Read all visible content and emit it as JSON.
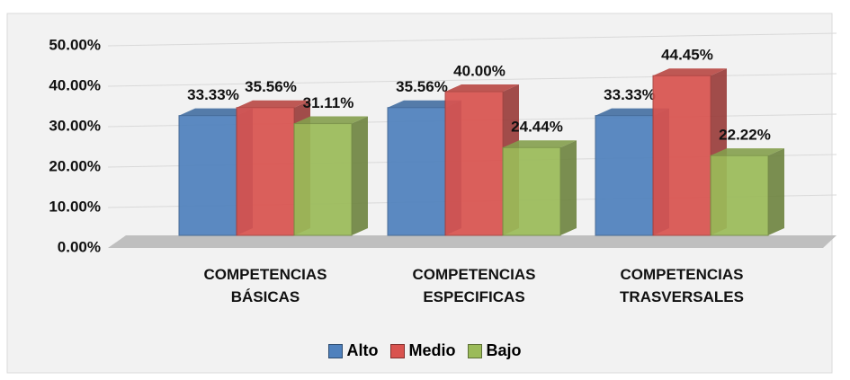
{
  "chart_data": {
    "type": "bar3d",
    "categories": [
      "COMPETENCIAS BÁSICAS",
      "COMPETENCIAS ESPECIFICAS",
      "COMPETENCIAS TRASVERSALES"
    ],
    "series": [
      {
        "name": "Alto",
        "color": "#4f81bd",
        "values": [
          33.33,
          35.56,
          33.33
        ],
        "value_labels": [
          "33.33%",
          "35.56%",
          "33.33%"
        ]
      },
      {
        "name": "Medio",
        "color": "#d9534f",
        "values": [
          35.56,
          40.0,
          44.45
        ],
        "value_labels": [
          "35.56%",
          "40.00%",
          "44.45%"
        ]
      },
      {
        "name": "Bajo",
        "color": "#9bbb59",
        "values": [
          31.11,
          24.44,
          22.22
        ],
        "value_labels": [
          "31.11%",
          "24.44%",
          "22.22%"
        ]
      }
    ],
    "ylim": [
      0,
      50
    ],
    "yticks": [
      {
        "value": 0,
        "label": "0.00%"
      },
      {
        "value": 10,
        "label": "10.00%"
      },
      {
        "value": 20,
        "label": "20.00%"
      },
      {
        "value": 30,
        "label": "30.00%"
      },
      {
        "value": 40,
        "label": "40.00%"
      },
      {
        "value": 50,
        "label": "50.00%"
      }
    ],
    "grid": true,
    "legend": "bottom"
  }
}
